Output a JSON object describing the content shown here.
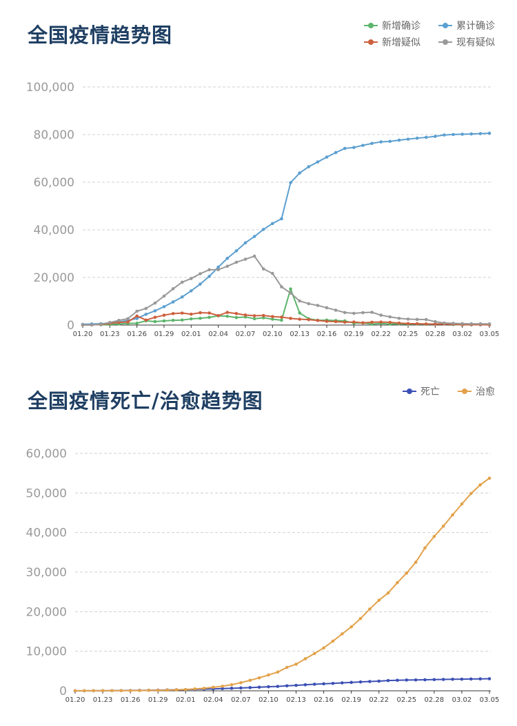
{
  "chart_data": [
    {
      "type": "line",
      "title": "全国疫情趋势图",
      "xlabel": "",
      "ylabel": "",
      "ylim": [
        0,
        100000
      ],
      "yticks": [
        "100,000",
        "80,000",
        "60,000",
        "40,000",
        "20,000",
        "0"
      ],
      "ytick_values": [
        100000,
        80000,
        60000,
        40000,
        20000,
        0
      ],
      "xtick_labels": [
        "01.20",
        "01.23",
        "01.26",
        "01.29",
        "02.01",
        "02.04",
        "02.07",
        "02.10",
        "02.13",
        "02.16",
        "02.19",
        "02.22",
        "02.25",
        "02.28",
        "03.02",
        "03.05"
      ],
      "grid": true,
      "legend_position": "top-right",
      "x": [
        "01.20",
        "01.21",
        "01.22",
        "01.23",
        "01.24",
        "01.25",
        "01.26",
        "01.27",
        "01.28",
        "01.29",
        "01.30",
        "01.31",
        "02.01",
        "02.02",
        "02.03",
        "02.04",
        "02.05",
        "02.06",
        "02.07",
        "02.08",
        "02.09",
        "02.10",
        "02.11",
        "02.12",
        "02.13",
        "02.14",
        "02.15",
        "02.16",
        "02.17",
        "02.18",
        "02.19",
        "02.20",
        "02.21",
        "02.22",
        "02.23",
        "02.24",
        "02.25",
        "02.26",
        "02.27",
        "02.28",
        "02.29",
        "03.01",
        "03.02",
        "03.03",
        "03.04",
        "03.05"
      ],
      "series": [
        {
          "name": "新增确诊",
          "color": "#5cb56b",
          "values": [
            77,
            149,
            131,
            259,
            444,
            688,
            769,
            1771,
            1459,
            1737,
            1982,
            2102,
            2590,
            2829,
            3235,
            3887,
            3694,
            3143,
            3385,
            2657,
            3062,
            2478,
            2015,
            15152,
            5090,
            2641,
            2009,
            2048,
            1886,
            1749,
            820,
            889,
            397,
            648,
            409,
            508,
            406,
            433,
            327,
            427,
            573,
            202,
            125,
            119,
            139,
            143
          ]
        },
        {
          "name": "累计确诊",
          "color": "#5c9fd0",
          "values": [
            291,
            440,
            571,
            830,
            1287,
            1975,
            2744,
            4515,
            5974,
            7711,
            9692,
            11791,
            14380,
            17205,
            20438,
            24324,
            28018,
            31161,
            34546,
            37198,
            40171,
            42638,
            44653,
            59804,
            63851,
            66492,
            68500,
            70548,
            72436,
            74185,
            74576,
            75465,
            76288,
            76936,
            77150,
            77658,
            78064,
            78497,
            78824,
            79251,
            79824,
            80026,
            80151,
            80270,
            80409,
            80552
          ]
        },
        {
          "name": "新增疑似",
          "color": "#cc5f3d",
          "values": [
            27,
            26,
            257,
            680,
            1118,
            1309,
            3806,
            2077,
            3248,
            4148,
            4812,
            5019,
            4562,
            5173,
            5072,
            3971,
            5328,
            4833,
            4214,
            3916,
            4008,
            3536,
            3342,
            2807,
            2450,
            2277,
            1918,
            1563,
            1432,
            1185,
            1277,
            936,
            1185,
            1255,
            1126,
            826,
            616,
            542,
            454,
            398,
            441,
            315,
            139,
            143,
            143,
            102
          ]
        },
        {
          "name": "现有疑似",
          "color": "#999999",
          "values": [
            54,
            37,
            393,
            1072,
            1965,
            2684,
            5794,
            6973,
            9239,
            12167,
            15238,
            17988,
            19544,
            21558,
            23214,
            23260,
            24702,
            26359,
            27657,
            28942,
            23589,
            21675,
            16067,
            13435,
            10109,
            8969,
            8228,
            7264,
            6242,
            5248,
            4922,
            5206,
            5365,
            4148,
            3434,
            2824,
            2491,
            2358,
            2308,
            1418,
            851,
            715,
            587,
            520,
            522,
            482
          ]
        }
      ]
    },
    {
      "type": "line",
      "title": "全国疫情死亡/治愈趋势图",
      "xlabel": "",
      "ylabel": "",
      "ylim": [
        0,
        60000
      ],
      "yticks": [
        "60,000",
        "50,000",
        "40,000",
        "30,000",
        "20,000",
        "10,000",
        "0"
      ],
      "ytick_values": [
        60000,
        50000,
        40000,
        30000,
        20000,
        10000,
        0
      ],
      "xtick_labels": [
        "01.20",
        "01.23",
        "01.26",
        "01.29",
        "02.01",
        "02.04",
        "02.07",
        "02.10",
        "02.13",
        "02.16",
        "02.19",
        "02.22",
        "02.25",
        "02.28",
        "03.02",
        "03.05"
      ],
      "grid": true,
      "legend_position": "top-right",
      "x": [
        "01.20",
        "01.21",
        "01.22",
        "01.23",
        "01.24",
        "01.25",
        "01.26",
        "01.27",
        "01.28",
        "01.29",
        "01.30",
        "01.31",
        "02.01",
        "02.02",
        "02.03",
        "02.04",
        "02.05",
        "02.06",
        "02.07",
        "02.08",
        "02.09",
        "02.10",
        "02.11",
        "02.12",
        "02.13",
        "02.14",
        "02.15",
        "02.16",
        "02.17",
        "02.18",
        "02.19",
        "02.20",
        "02.21",
        "02.22",
        "02.23",
        "02.24",
        "02.25",
        "02.26",
        "02.27",
        "02.28",
        "02.29",
        "03.01",
        "03.02",
        "03.03",
        "03.04",
        "03.05"
      ],
      "series": [
        {
          "name": "死亡",
          "color": "#3b4fb4",
          "values": [
            6,
            9,
            17,
            25,
            41,
            56,
            80,
            106,
            132,
            170,
            213,
            259,
            304,
            361,
            425,
            490,
            563,
            636,
            722,
            811,
            908,
            1016,
            1113,
            1259,
            1380,
            1523,
            1665,
            1770,
            1868,
            2004,
            2118,
            2236,
            2345,
            2442,
            2592,
            2663,
            2715,
            2744,
            2788,
            2835,
            2870,
            2912,
            2943,
            2981,
            3012,
            3042
          ]
        },
        {
          "name": "治愈",
          "color": "#e2a24b",
          "values": [
            25,
            25,
            28,
            34,
            38,
            49,
            51,
            60,
            103,
            124,
            171,
            243,
            328,
            475,
            632,
            892,
            1153,
            1540,
            2050,
            2649,
            3281,
            3996,
            4740,
            5911,
            6723,
            8096,
            9419,
            10844,
            12552,
            14376,
            16155,
            18264,
            20659,
            22888,
            24734,
            27323,
            29745,
            32495,
            36117,
            39002,
            41625,
            44462,
            47204,
            49856,
            52045,
            53726
          ]
        }
      ]
    }
  ]
}
